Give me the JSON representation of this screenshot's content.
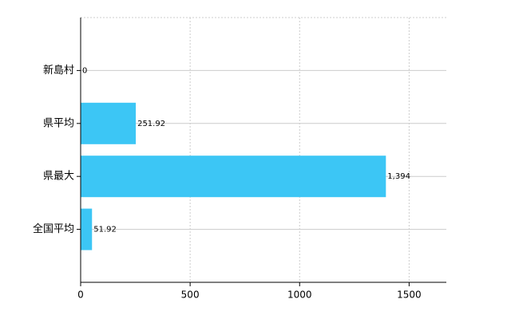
{
  "chart_data": {
    "type": "bar",
    "orientation": "horizontal",
    "categories": [
      "新島村",
      "県平均",
      "県最大",
      "全国平均"
    ],
    "values": [
      0,
      251.92,
      1394,
      51.92
    ],
    "value_labels": [
      "0",
      "251.92",
      "1,394",
      "51.92"
    ],
    "color": "#3cc6f5",
    "xlim": [
      0,
      1670
    ],
    "xticks": [
      0,
      500,
      1000,
      1500
    ],
    "grid": true
  }
}
